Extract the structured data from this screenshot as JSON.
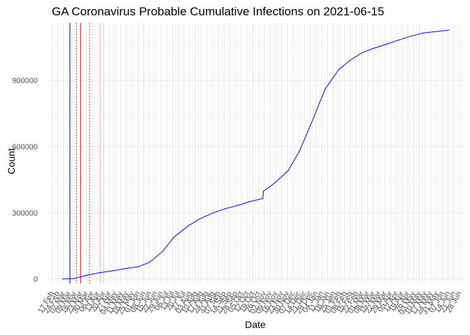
{
  "chart_data": {
    "type": "line",
    "title": "GA Coronavirus Probable Cumulative Infections on 2021-06-15",
    "xlabel": "Date",
    "ylabel": "Count",
    "ylim": [
      -20000,
      1160000
    ],
    "yticks": [
      0,
      300000,
      600000,
      900000
    ],
    "ytick_labels": [
      "0",
      "300000",
      "600000",
      "900000"
    ],
    "xlim": [
      "2020-02-10",
      "2021-07-04"
    ],
    "x_tick_start": "2020-02-17",
    "x_tick_labels": [
      "17 Feb",
      "24 Feb",
      "02 Mar",
      "09 Mar",
      "16 Mar",
      "23 Mar",
      "30 Mar",
      "06 Apr",
      "13 Apr",
      "20 Apr",
      "27 Apr",
      "04 May",
      "11 May",
      "18 May",
      "25 May",
      "01 Jun",
      "08 Jun",
      "15 Jun",
      "22 Jun",
      "29 Jun",
      "06 Jul",
      "13 Jul",
      "20 Jul",
      "27 Jul",
      "03 Aug",
      "10 Aug",
      "17 Aug",
      "24 Aug",
      "31 Aug",
      "07 Sep",
      "14 Sep",
      "21 Sep",
      "28 Sep",
      "05 Oct",
      "12 Oct",
      "19 Oct",
      "26 Oct",
      "02 Nov",
      "09 Nov",
      "16 Nov",
      "23 Nov",
      "30 Nov",
      "07 Dec",
      "14 Dec",
      "21 Dec",
      "28 Dec",
      "04 Jan",
      "11 Jan",
      "18 Jan",
      "25 Jan",
      "01 Feb",
      "08 Feb",
      "15 Feb",
      "22 Feb",
      "01 Mar",
      "08 Mar",
      "15 Mar",
      "22 Mar",
      "29 Mar",
      "05 Apr",
      "12 Apr",
      "19 Apr",
      "26 Apr",
      "03 May",
      "10 May",
      "17 May",
      "24 May",
      "31 May",
      "07 Jun",
      "14 Jun",
      "21 Jun",
      "28 Jun"
    ],
    "grid": true,
    "legend": "none",
    "series": [
      {
        "color": "#0000ff",
        "x": [
          "2020-03-01",
          "2020-03-15",
          "2020-04-01",
          "2020-04-15",
          "2020-05-01",
          "2020-05-15",
          "2020-06-01",
          "2020-06-15",
          "2020-07-01",
          "2020-07-15",
          "2020-08-01",
          "2020-08-15",
          "2020-09-01",
          "2020-09-15",
          "2020-10-01",
          "2020-10-15",
          "2020-10-31",
          "2020-11-01",
          "2020-11-15",
          "2020-12-01",
          "2020-12-15",
          "2021-01-01",
          "2021-01-15",
          "2021-02-01",
          "2021-02-15",
          "2021-03-01",
          "2021-03-15",
          "2021-04-01",
          "2021-04-15",
          "2021-05-01",
          "2021-05-15",
          "2021-06-01",
          "2021-06-15"
        ],
        "y": [
          0,
          2000,
          18000,
          28000,
          37000,
          46000,
          55000,
          75000,
          125000,
          190000,
          240000,
          272000,
          300000,
          318000,
          334000,
          350000,
          365000,
          398000,
          436000,
          490000,
          580000,
          730000,
          860000,
          950000,
          992000,
          1025000,
          1045000,
          1065000,
          1083000,
          1102000,
          1115000,
          1122000,
          1128000
        ]
      }
    ],
    "vlines": [
      {
        "x": "2020-03-10",
        "color": "#0000ff",
        "style": "solid"
      },
      {
        "x": "2020-03-23",
        "color": "#cc0000",
        "style": "solid"
      },
      {
        "x": "2020-03-18",
        "color": "#cc0000",
        "style": "dotted"
      },
      {
        "x": "2020-04-03",
        "color": "#cc0000",
        "style": "dotted"
      },
      {
        "x": "2020-04-16",
        "color": "#ffaaaa",
        "style": "solid"
      },
      {
        "x": "2020-04-20",
        "color": "#bbbbbb",
        "style": "dotted"
      }
    ]
  }
}
